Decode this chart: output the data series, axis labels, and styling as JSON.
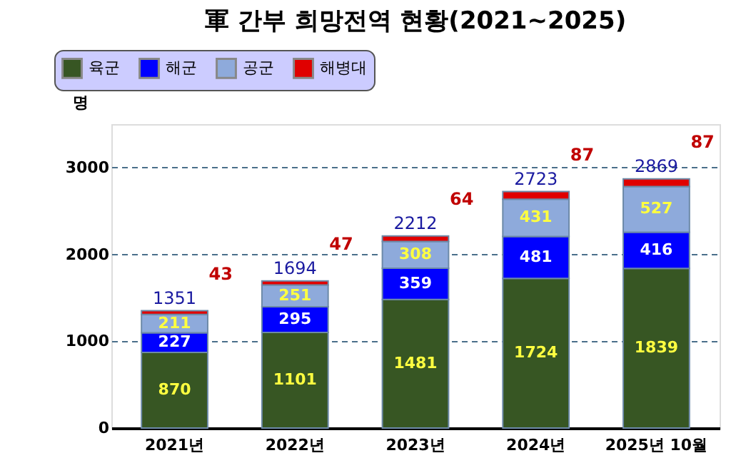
{
  "chart_data": {
    "type": "bar",
    "stacked": true,
    "title": "軍 간부 희망전역 현황(2021~2025)",
    "ylabel": "명",
    "categories": [
      "2021년",
      "2022년",
      "2023년",
      "2024년",
      "2025년 10월"
    ],
    "series": [
      {
        "name": "육군",
        "color": "#375623",
        "values": [
          870,
          1101,
          1481,
          1724,
          1839
        ]
      },
      {
        "name": "해군",
        "color": "#0000ff",
        "values": [
          227,
          295,
          359,
          481,
          416
        ]
      },
      {
        "name": "공군",
        "color": "#8eaadb",
        "values": [
          211,
          251,
          308,
          431,
          527
        ]
      },
      {
        "name": "해병대",
        "color": "#e00000",
        "values": [
          43,
          47,
          64,
          87,
          87
        ]
      }
    ],
    "totals": [
      "1351",
      "1694",
      "2212",
      "2723",
      "2869"
    ],
    "data_labels": true,
    "ylim": [
      0,
      3500
    ],
    "yticks": [
      0,
      1000,
      2000,
      3000
    ],
    "grid": "y",
    "legend": "top left"
  }
}
